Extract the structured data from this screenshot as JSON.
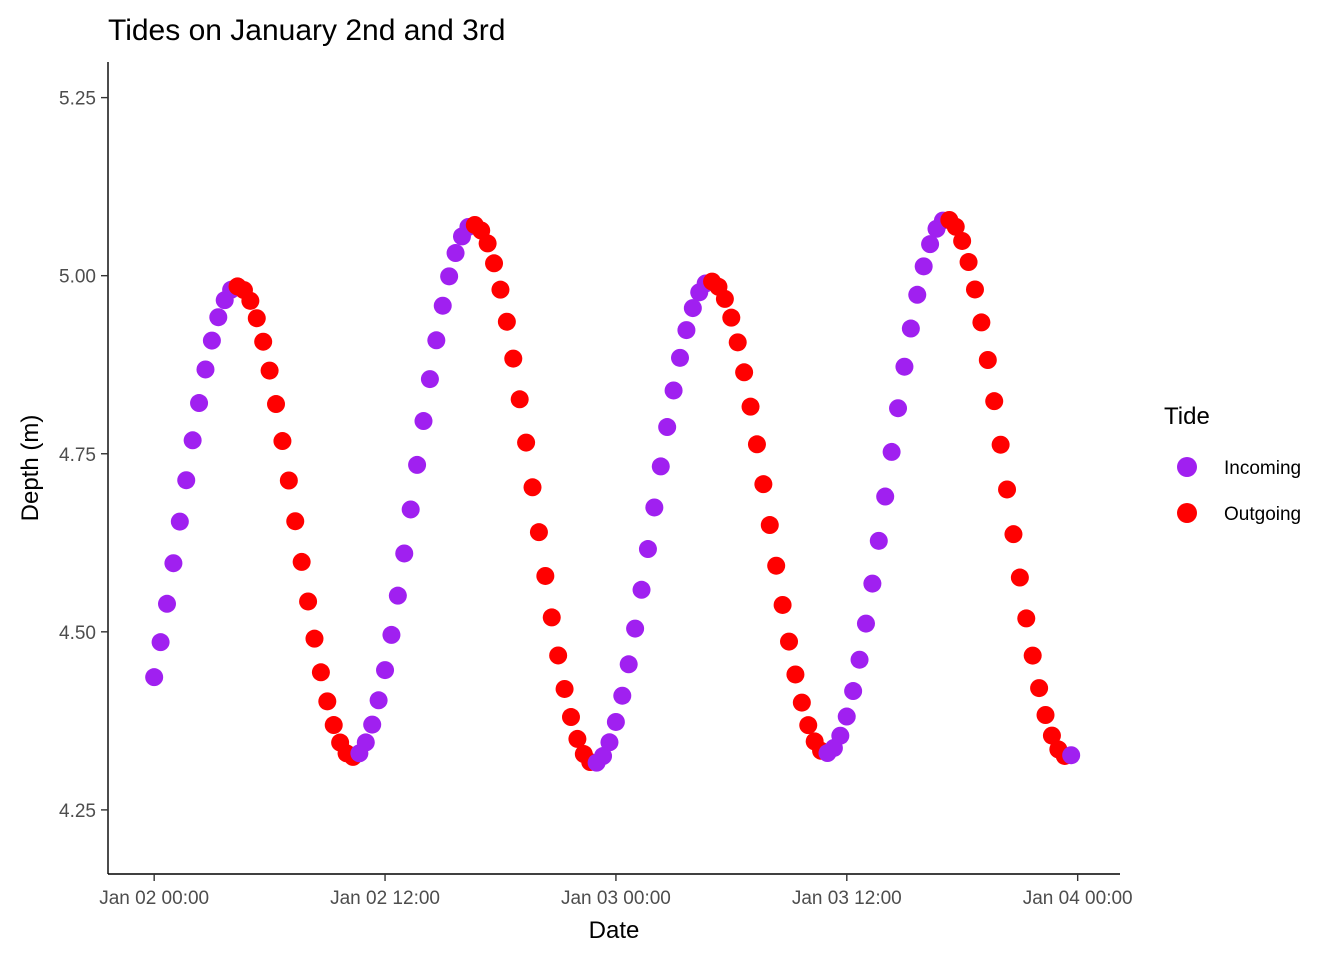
{
  "chart_data": {
    "type": "scatter",
    "title": "Tides on January 2nd and 3rd",
    "xlabel": "Date",
    "ylabel": "Depth (m)",
    "x_ticks": [
      "Jan 02 00:00",
      "Jan 02 12:00",
      "Jan 03 00:00",
      "Jan 03 12:00",
      "Jan 04 00:00"
    ],
    "x_tick_hours": [
      0,
      12,
      24,
      36,
      48
    ],
    "xlim_hours": [
      -2.4,
      50.2
    ],
    "y_ticks": [
      "4.25",
      "4.50",
      "4.75",
      "5.00",
      "5.25"
    ],
    "y_tick_values": [
      4.25,
      4.5,
      4.75,
      5.0,
      5.25
    ],
    "ylim": [
      4.16,
      5.3
    ],
    "grid": false,
    "legend": {
      "title": "Tide",
      "position": "right",
      "entries": [
        {
          "name": "Incoming",
          "color": "#a020f0"
        },
        {
          "name": "Outgoing",
          "color": "#ff0000"
        }
      ]
    },
    "model": {
      "start_hour": 0,
      "end_hour": 47.67,
      "step_hours": 0.3333,
      "mean_depth": 4.67,
      "amp1": 0.355,
      "period1_hours": 12.3,
      "phase1_hours": 4.3,
      "amp2": 0.042,
      "period2_hours": 24.8,
      "phase2_hours": 16.0,
      "trend_per_hour": 0.0003
    },
    "series": [
      {
        "name": "Incoming",
        "color": "#a020f0",
        "description": "rising depth"
      },
      {
        "name": "Outgoing",
        "color": "#ff0000",
        "description": "falling depth"
      }
    ]
  }
}
